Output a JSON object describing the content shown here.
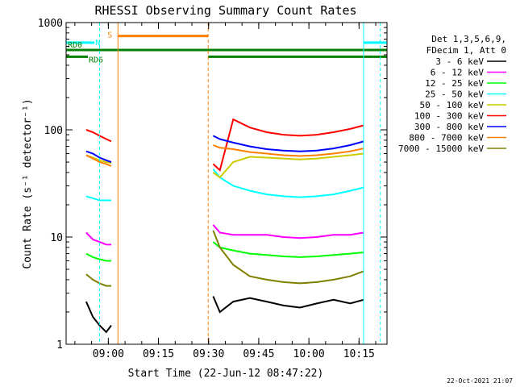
{
  "chart_data": {
    "type": "line",
    "title": "RHESSI Observing Summary Count Rates",
    "xlabel": "Start Time (22-Jun-12 08:47:22)",
    "ylabel": "Count Rate (s⁻¹ detector⁻¹)",
    "y_scale": "log",
    "ylim": [
      1,
      1000
    ],
    "xlim_minutes": [
      0,
      96
    ],
    "x_tick_labels": [
      "09:00",
      "09:15",
      "09:30",
      "09:45",
      "10:00",
      "10:15"
    ],
    "x_tick_minutes": [
      12.63,
      27.63,
      42.63,
      57.63,
      72.63,
      87.63
    ],
    "y_tick_labels": [
      "1",
      "10",
      "100",
      "1000"
    ],
    "y_tick_values": [
      1,
      10,
      100,
      1000
    ],
    "grid": false,
    "legend_header": [
      "Det 1,3,5,6,9,",
      "FDecim 1, Att 0"
    ],
    "legend_position": "top-right",
    "series": [
      {
        "name": "3 - 6 keV",
        "color": "#000000",
        "segments": [
          {
            "t": [
              6.0,
              8.0,
              10.0,
              12.0,
              13.5
            ],
            "v": [
              2.5,
              1.8,
              1.5,
              1.3,
              1.5
            ]
          },
          {
            "t": [
              44.0,
              46.0,
              50.0,
              55.0,
              60.0,
              65.0,
              70.0,
              75.0,
              80.0,
              85.0,
              89.0
            ],
            "v": [
              2.8,
              2.0,
              2.5,
              2.7,
              2.5,
              2.3,
              2.2,
              2.4,
              2.6,
              2.4,
              2.6
            ]
          }
        ]
      },
      {
        "name": "6 - 12 keV",
        "color": "#ff00ff",
        "segments": [
          {
            "t": [
              6.0,
              8.0,
              10.0,
              12.0,
              13.5
            ],
            "v": [
              11.0,
              9.5,
              9.0,
              8.5,
              8.5
            ]
          },
          {
            "t": [
              44.0,
              46.0,
              50.0,
              55.0,
              60.0,
              65.0,
              70.0,
              75.0,
              80.0,
              85.0,
              89.0
            ],
            "v": [
              13.0,
              11.0,
              10.5,
              10.5,
              10.5,
              10.0,
              9.8,
              10.0,
              10.5,
              10.5,
              11.0
            ]
          }
        ]
      },
      {
        "name": "12 - 25 keV",
        "color": "#00ff00",
        "segments": [
          {
            "t": [
              6.0,
              8.0,
              10.0,
              12.0,
              13.5
            ],
            "v": [
              7.0,
              6.5,
              6.2,
              6.0,
              6.0
            ]
          },
          {
            "t": [
              44.0,
              46.0,
              50.0,
              55.0,
              60.0,
              65.0,
              70.0,
              75.0,
              80.0,
              85.0,
              89.0
            ],
            "v": [
              9.0,
              8.0,
              7.5,
              7.0,
              6.8,
              6.6,
              6.5,
              6.6,
              6.8,
              7.0,
              7.2
            ]
          }
        ]
      },
      {
        "name": "25 - 50 keV",
        "color": "#00ffff",
        "segments": [
          {
            "t": [
              6.0,
              8.0,
              10.0,
              12.0,
              13.5
            ],
            "v": [
              24.0,
              23.0,
              22.0,
              22.0,
              22.0
            ]
          },
          {
            "t": [
              44.0,
              46.0,
              50.0,
              55.0,
              60.0,
              65.0,
              70.0,
              75.0,
              80.0,
              85.0,
              89.0
            ],
            "v": [
              43.0,
              36.0,
              30.0,
              27.0,
              25.0,
              24.0,
              23.5,
              24.0,
              25.0,
              27.0,
              29.0
            ]
          }
        ]
      },
      {
        "name": "50 - 100 keV",
        "color": "#cccc00",
        "segments": [
          {
            "t": [
              6.0,
              8.0,
              10.0,
              12.0,
              13.5
            ],
            "v": [
              58.0,
              55.0,
              52.0,
              50.0,
              49.0
            ]
          },
          {
            "t": [
              44.0,
              46.0,
              50.0,
              55.0,
              60.0,
              65.0,
              70.0,
              75.0,
              80.0,
              85.0,
              89.0
            ],
            "v": [
              40.0,
              36.0,
              50.0,
              56.0,
              55.0,
              54.0,
              53.0,
              54.0,
              56.0,
              58.0,
              60.0
            ]
          }
        ]
      },
      {
        "name": "100 - 300 keV",
        "color": "#ff0000",
        "segments": [
          {
            "t": [
              6.0,
              8.0,
              10.0,
              12.0,
              13.5
            ],
            "v": [
              100.0,
              95.0,
              88.0,
              82.0,
              78.0
            ]
          },
          {
            "t": [
              44.0,
              46.0,
              50.0,
              55.0,
              60.0,
              65.0,
              70.0,
              75.0,
              80.0,
              85.0,
              89.0
            ],
            "v": [
              48.0,
              42.0,
              125.0,
              105.0,
              95.0,
              90.0,
              88.0,
              90.0,
              95.0,
              102.0,
              110.0
            ]
          }
        ]
      },
      {
        "name": "300 - 800 keV",
        "color": "#0000ff",
        "segments": [
          {
            "t": [
              6.0,
              8.0,
              10.0,
              12.0,
              13.5
            ],
            "v": [
              63.0,
              60.0,
              55.0,
              52.0,
              50.0
            ]
          },
          {
            "t": [
              44.0,
              46.0,
              50.0,
              55.0,
              60.0,
              65.0,
              70.0,
              75.0,
              80.0,
              85.0,
              89.0
            ],
            "v": [
              88.0,
              82.0,
              76.0,
              70.0,
              66.0,
              64.0,
              63.0,
              64.0,
              67.0,
              72.0,
              78.0
            ]
          }
        ]
      },
      {
        "name": "800 - 7000 keV",
        "color": "#ff8000",
        "segments": [
          {
            "t": [
              6.0,
              8.0,
              10.0,
              12.0,
              13.5
            ],
            "v": [
              58.0,
              54.0,
              50.0,
              48.0,
              46.0
            ]
          },
          {
            "t": [
              44.0,
              46.0,
              50.0,
              55.0,
              60.0,
              65.0,
              70.0,
              75.0,
              80.0,
              85.0,
              89.0
            ],
            "v": [
              72.0,
              68.0,
              66.0,
              62.0,
              60.0,
              58.0,
              57.0,
              58.0,
              60.0,
              63.0,
              67.0
            ]
          }
        ]
      },
      {
        "name": "7000 - 15000 keV",
        "color": "#808000",
        "segments": [
          {
            "t": [
              6.0,
              8.0,
              10.0,
              12.0,
              13.5
            ],
            "v": [
              4.5,
              4.0,
              3.7,
              3.5,
              3.5
            ]
          },
          {
            "t": [
              44.0,
              46.0,
              50.0,
              55.0,
              60.0,
              65.0,
              70.0,
              75.0,
              80.0,
              85.0,
              89.0
            ],
            "v": [
              11.5,
              8.0,
              5.5,
              4.3,
              4.0,
              3.8,
              3.7,
              3.8,
              4.0,
              4.3,
              4.8
            ]
          }
        ]
      }
    ],
    "flag_bars": [
      {
        "label": "N",
        "color": "#00ffff",
        "v": 650,
        "intervals": [
          [
            0,
            8.5
          ],
          [
            89,
            96
          ]
        ]
      },
      {
        "label": "S",
        "color": "#ff8000",
        "v": 750,
        "intervals": [
          [
            15.5,
            42.5
          ]
        ]
      },
      {
        "label": "RD0",
        "color": "#008000",
        "v": 555,
        "intervals": [
          [
            0,
            96
          ]
        ]
      },
      {
        "label": "RD6",
        "color": "#008000",
        "v": 480,
        "intervals": [
          [
            0,
            6.5
          ],
          [
            42.5,
            51
          ],
          [
            51,
            92
          ],
          [
            92,
            96
          ]
        ]
      }
    ],
    "vertical_markers": [
      {
        "t": 10.0,
        "color": "#00ffff",
        "style": "dashed"
      },
      {
        "t": 15.5,
        "color": "#ff8000",
        "style": "solid"
      },
      {
        "t": 42.5,
        "color": "#ff8000",
        "style": "dashed"
      },
      {
        "t": 89.0,
        "color": "#00ffff",
        "style": "solid"
      },
      {
        "t": 94.0,
        "color": "#00ffff",
        "style": "dashed"
      }
    ],
    "timestamp": "22-Oct-2021 21:07"
  }
}
